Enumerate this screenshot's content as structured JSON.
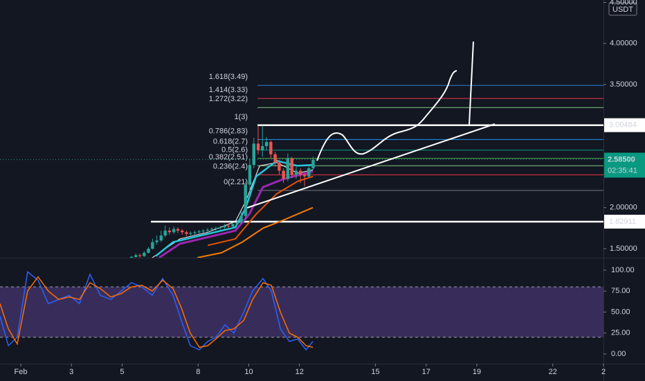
{
  "chart_data": [
    {
      "type": "candlestick",
      "currency": "USDT",
      "xlim": [
        0.18,
        24.0
      ],
      "xticks": [
        {
          "value": 1,
          "label": "Feb"
        },
        3,
        5,
        8,
        10,
        12,
        15,
        17,
        19,
        22,
        {
          "value": 24,
          "label": "2"
        }
      ],
      "ylim": [
        1.39,
        4.53
      ],
      "yticks": [
        {
          "value": 1.5,
          "label": "1.50000"
        },
        {
          "value": 2.0,
          "label": "2.00000"
        },
        {
          "value": 3.5,
          "label": "3.50000"
        },
        {
          "value": 4.0,
          "label": "4.00000"
        },
        {
          "value": 4.5,
          "label": "4.50000"
        }
      ],
      "candles": {
        "up_color": "#26a69a",
        "down_color": "#ef5350",
        "x": [
          5.37,
          5.54,
          5.7,
          5.87,
          6.04,
          6.2,
          6.37,
          6.54,
          6.7,
          6.87,
          7.04,
          7.2,
          7.37,
          7.54,
          7.7,
          7.87,
          8.04,
          8.2,
          8.37,
          8.54,
          8.7,
          8.87,
          9.04,
          9.2,
          9.37,
          9.54,
          9.7,
          9.87,
          10.04,
          10.2,
          10.37,
          10.54,
          10.7,
          10.87,
          11.04,
          11.2,
          11.37,
          11.54,
          11.7,
          11.87,
          12.04,
          12.2,
          12.37,
          12.54
        ],
        "open": [
          1.38,
          1.4,
          1.42,
          1.41,
          1.45,
          1.5,
          1.58,
          1.6,
          1.66,
          1.72,
          1.7,
          1.74,
          1.72,
          1.7,
          1.68,
          1.69,
          1.7,
          1.71,
          1.72,
          1.73,
          1.74,
          1.75,
          1.76,
          1.78,
          1.77,
          1.8,
          1.82,
          1.9,
          2.28,
          2.52,
          2.78,
          2.7,
          2.75,
          2.8,
          2.65,
          2.55,
          2.45,
          2.35,
          2.6,
          2.4,
          2.45,
          2.4,
          2.38,
          2.48
        ],
        "high": [
          1.41,
          1.44,
          1.44,
          1.47,
          1.52,
          1.62,
          1.66,
          1.72,
          1.78,
          1.76,
          1.77,
          1.76,
          1.74,
          1.72,
          1.71,
          1.72,
          1.73,
          1.74,
          1.75,
          1.76,
          1.77,
          1.78,
          1.8,
          1.81,
          1.82,
          1.85,
          1.95,
          2.32,
          2.6,
          2.85,
          3.0,
          3.0,
          2.86,
          2.82,
          2.68,
          2.58,
          2.48,
          2.66,
          2.62,
          2.5,
          2.48,
          2.42,
          2.5,
          2.62
        ],
        "low": [
          1.36,
          1.39,
          1.39,
          1.4,
          1.44,
          1.49,
          1.55,
          1.58,
          1.64,
          1.67,
          1.68,
          1.69,
          1.67,
          1.65,
          1.66,
          1.67,
          1.68,
          1.69,
          1.7,
          1.71,
          1.72,
          1.73,
          1.74,
          1.75,
          1.76,
          1.78,
          1.8,
          1.86,
          2.2,
          2.48,
          2.65,
          2.62,
          2.7,
          2.6,
          2.5,
          2.4,
          2.3,
          2.32,
          2.36,
          2.35,
          2.3,
          2.26,
          2.36,
          2.46
        ],
        "close": [
          1.4,
          1.42,
          1.41,
          1.45,
          1.5,
          1.58,
          1.6,
          1.66,
          1.72,
          1.7,
          1.74,
          1.72,
          1.7,
          1.68,
          1.69,
          1.7,
          1.71,
          1.72,
          1.73,
          1.74,
          1.75,
          1.76,
          1.78,
          1.77,
          1.8,
          1.82,
          1.9,
          2.28,
          2.52,
          2.78,
          2.7,
          2.75,
          2.8,
          2.65,
          2.55,
          2.45,
          2.35,
          2.6,
          2.4,
          2.45,
          2.4,
          2.38,
          2.48,
          2.585
        ]
      },
      "series": [
        {
          "color": "#ffffff",
          "width": 1,
          "x": [
            6.19,
            7.28,
            8.38,
            9.47,
            9.88,
            10.43,
            11.11,
            11.93,
            12.53
          ],
          "values": [
            1.39,
            1.62,
            1.7,
            1.83,
            2.08,
            2.51,
            2.55,
            2.42,
            2.46
          ]
        },
        {
          "color": "#26c6da",
          "width": 2.5,
          "x": [
            6.33,
            7.01,
            8.38,
            9.47,
            9.88,
            10.29,
            11.11,
            11.93,
            12.53
          ],
          "values": [
            1.41,
            1.58,
            1.68,
            1.76,
            2.0,
            2.38,
            2.57,
            2.51,
            2.52
          ]
        },
        {
          "color": "#9c27b0",
          "width": 3,
          "x": [
            6.46,
            7.28,
            8.38,
            9.47,
            10.02,
            10.56,
            11.38,
            12.53
          ],
          "values": [
            1.39,
            1.56,
            1.64,
            1.72,
            1.92,
            2.25,
            2.35,
            2.44
          ]
        },
        {
          "color": "#e65100",
          "width": 2,
          "x": [
            8.38,
            9.47,
            10.29,
            11.11,
            11.93,
            12.53
          ],
          "values": [
            1.54,
            1.62,
            1.92,
            2.17,
            2.32,
            2.38
          ]
        },
        {
          "color": "#f57c00",
          "width": 2,
          "x": [
            7.97,
            8.92,
            9.74,
            10.56,
            11.38,
            12.53
          ],
          "values": [
            1.39,
            1.45,
            1.58,
            1.75,
            1.85,
            2.0
          ]
        }
      ],
      "levels": [
        3.00484,
        1.82911
      ],
      "last_price": {
        "value": 2.585,
        "label": "2.58500"
      },
      "countdown": "02:35:41",
      "fib": [
        {
          "label": "1.618(3.49)",
          "value": 3.49,
          "color": "#2f7fd6"
        },
        {
          "label": "1.414(3.33)",
          "value": 3.33,
          "color": "#f23645"
        },
        {
          "label": "1.272(3.22)",
          "value": 3.22,
          "color": "#81c784"
        },
        {
          "label": "1(3)",
          "value": 3,
          "color": "#787b86"
        },
        {
          "label": "0.786(2.83)",
          "value": 2.83,
          "color": "#2196f3"
        },
        {
          "label": "0.618(2.7)",
          "value": 2.7,
          "color": "#089981"
        },
        {
          "label": "0.5(2.6)",
          "value": 2.6,
          "color": "#4caf50"
        },
        {
          "label": "0.382(2.51)",
          "value": 2.51,
          "color": "#81c784"
        },
        {
          "label": "0.236(2.4)",
          "value": 2.4,
          "color": "#f23645"
        },
        {
          "label": "0(2.21)",
          "value": 2.21,
          "color": "#787b86"
        }
      ]
    },
    {
      "type": "line",
      "ylim": [
        -11.5,
        114
      ],
      "yticks": [
        {
          "value": 0,
          "label": "0.00"
        },
        {
          "value": 25,
          "label": "25.00"
        },
        {
          "value": 50,
          "label": "50.00"
        },
        {
          "value": 75,
          "label": "75.00"
        },
        {
          "value": 100,
          "label": "100.00"
        }
      ],
      "band": [
        20,
        80
      ],
      "band_color": "#7e57c2",
      "series": [
        {
          "color": "#2962ff",
          "x": [
            0.18,
            0.51,
            0.86,
            1.27,
            1.68,
            2.09,
            2.5,
            2.91,
            3.32,
            3.73,
            4.14,
            4.55,
            4.96,
            5.37,
            5.78,
            6.19,
            6.6,
            7.01,
            7.34,
            7.69,
            8.05,
            8.38,
            8.7,
            9.06,
            9.41,
            9.8,
            10.15,
            10.56,
            10.89,
            11.25,
            11.6,
            11.93,
            12.26,
            12.53
          ],
          "values": [
            45,
            10,
            20,
            98,
            88,
            60,
            65,
            70,
            60,
            95,
            70,
            65,
            75,
            85,
            80,
            70,
            90,
            70,
            40,
            10,
            5,
            15,
            20,
            35,
            25,
            50,
            75,
            90,
            75,
            30,
            15,
            18,
            5,
            15
          ]
        },
        {
          "color": "#ff6d00",
          "x": [
            0.18,
            0.51,
            0.86,
            1.27,
            1.68,
            2.09,
            2.5,
            2.91,
            3.32,
            3.73,
            4.14,
            4.55,
            4.96,
            5.37,
            5.78,
            6.19,
            6.6,
            7.01,
            7.34,
            7.69,
            8.05,
            8.38,
            8.7,
            9.06,
            9.41,
            9.8,
            10.15,
            10.56,
            10.89,
            11.25,
            11.6,
            11.93,
            12.26,
            12.53
          ],
          "values": [
            60,
            30,
            12,
            75,
            92,
            75,
            65,
            68,
            65,
            85,
            78,
            68,
            72,
            80,
            82,
            75,
            88,
            78,
            55,
            25,
            8,
            10,
            18,
            28,
            30,
            40,
            65,
            85,
            82,
            50,
            25,
            20,
            10,
            8
          ]
        }
      ]
    }
  ]
}
